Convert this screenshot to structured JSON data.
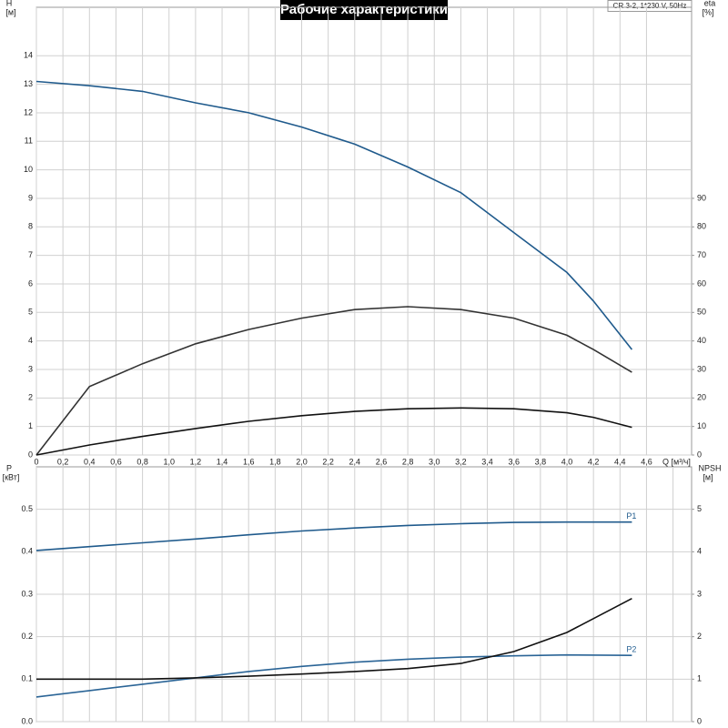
{
  "chart_data": [
    {
      "type": "line",
      "title": "Рабочие характеристики",
      "annotation": "CR 3-2, 1*230 V, 50Hz",
      "ylabel": "H",
      "ylabel_unit": "[м]",
      "y2label": "eta",
      "y2label_unit": "[%]",
      "xlabel": "Q [м³/ч]",
      "xlim": [
        0,
        4.94
      ],
      "ylim": [
        0,
        15.7
      ],
      "y2lim": [
        0,
        157
      ],
      "xticks": [
        0,
        {
          "value": 0.2,
          "label": "0,2"
        },
        {
          "value": 0.4,
          "label": "0,4"
        },
        {
          "value": 0.6,
          "label": "0,6"
        },
        {
          "value": 0.8,
          "label": "0,8"
        },
        {
          "value": 1.0,
          "label": "1,0"
        },
        {
          "value": 1.2,
          "label": "1,2"
        },
        {
          "value": 1.4,
          "label": "1,4"
        },
        {
          "value": 1.6,
          "label": "1,6"
        },
        {
          "value": 1.8,
          "label": "1,8"
        },
        {
          "value": 2.0,
          "label": "2,0"
        },
        {
          "value": 2.2,
          "label": "2,2"
        },
        {
          "value": 2.4,
          "label": "2,4"
        },
        {
          "value": 2.6,
          "label": "2,6"
        },
        {
          "value": 2.8,
          "label": "2,8"
        },
        {
          "value": 3.0,
          "label": "3,0"
        },
        {
          "value": 3.2,
          "label": "3,2"
        },
        {
          "value": 3.4,
          "label": "3,4"
        },
        {
          "value": 3.6,
          "label": "3,6"
        },
        {
          "value": 3.8,
          "label": "3,8"
        },
        {
          "value": 4.0,
          "label": "4,0"
        },
        {
          "value": 4.2,
          "label": "4,2"
        },
        {
          "value": 4.4,
          "label": "4,4"
        },
        {
          "value": 4.6,
          "label": "4,6"
        }
      ],
      "yticks": [
        0,
        1,
        2,
        3,
        4,
        5,
        6,
        7,
        8,
        9,
        10,
        11,
        12,
        13,
        14
      ],
      "y2ticks": [
        0,
        10,
        20,
        30,
        40,
        50,
        60,
        70,
        80,
        90
      ],
      "grid": true,
      "x": [
        0,
        0.4,
        0.8,
        1.2,
        1.6,
        2.0,
        2.4,
        2.8,
        3.2,
        3.6,
        4.0,
        4.2,
        4.49
      ],
      "series": [
        {
          "color": "#1f5a8c",
          "values": [
            13.1,
            12.95,
            12.75,
            12.35,
            12.0,
            11.5,
            10.9,
            10.1,
            9.2,
            7.8,
            6.4,
            5.4,
            3.7
          ]
        },
        {
          "color": "#333333",
          "axis": "y2",
          "values": [
            0,
            24,
            32,
            39,
            44,
            48,
            51,
            52,
            51,
            48,
            42,
            37,
            29
          ]
        },
        {
          "color": "#111111",
          "axis": "y2",
          "values": [
            0,
            3.5,
            6.5,
            9.3,
            11.8,
            13.8,
            15.3,
            16.2,
            16.5,
            16.2,
            14.8,
            13.2,
            9.7
          ]
        }
      ]
    },
    {
      "type": "line",
      "ylabel": "P",
      "ylabel_unit": "[кВт]",
      "y2label": "NPSH",
      "y2label_unit": "[м]",
      "xlim": [
        0,
        4.94
      ],
      "ylim": [
        0,
        0.6
      ],
      "y2lim": [
        0,
        6
      ],
      "xticks": [
        0,
        0.2,
        0.4,
        0.6,
        0.8,
        1.0,
        1.2,
        1.4,
        1.6,
        1.8,
        2.0,
        2.2,
        2.4,
        2.6,
        2.8,
        3.0,
        3.2,
        3.4,
        3.6,
        3.8,
        4.0,
        4.2,
        4.4,
        4.6,
        4.8
      ],
      "yticks": [
        {
          "value": 0,
          "label": "0.0"
        },
        0.1,
        0.2,
        0.3,
        0.4,
        0.5
      ],
      "y2ticks": [
        0,
        1,
        2,
        3,
        4,
        5
      ],
      "grid": true,
      "x": [
        0,
        0.4,
        0.8,
        1.2,
        1.6,
        2.0,
        2.4,
        2.8,
        3.2,
        3.6,
        4.0,
        4.49
      ],
      "series": [
        {
          "name": "P1",
          "color": "#1f5a8c",
          "values": [
            0.403,
            0.412,
            0.421,
            0.43,
            0.44,
            0.449,
            0.456,
            0.462,
            0.466,
            0.469,
            0.47,
            0.47
          ]
        },
        {
          "name": "P2",
          "color": "#2a6496",
          "values": [
            0.058,
            0.073,
            0.088,
            0.103,
            0.118,
            0.13,
            0.14,
            0.147,
            0.152,
            0.155,
            0.157,
            0.156
          ]
        },
        {
          "color": "#111111",
          "axis": "y2",
          "values": [
            1.0,
            1.0,
            1.0,
            1.03,
            1.07,
            1.12,
            1.18,
            1.25,
            1.37,
            1.65,
            2.1,
            2.9
          ]
        }
      ]
    }
  ]
}
